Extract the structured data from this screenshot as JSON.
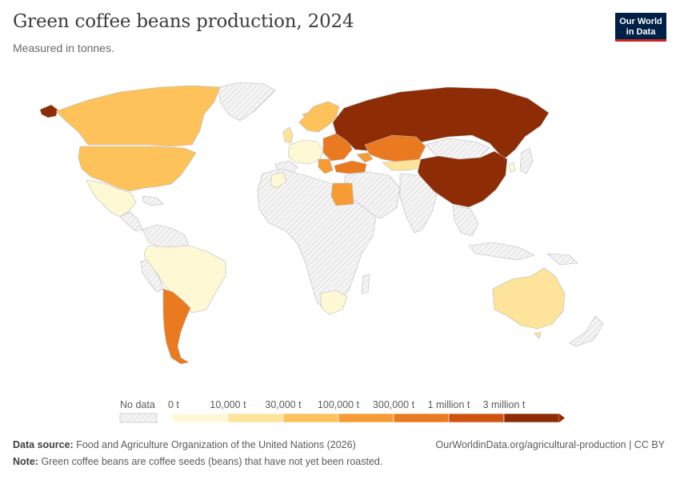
{
  "title": "Green coffee beans production, 2024",
  "subtitle": "Measured in tonnes.",
  "logo": {
    "line1": "Our World",
    "line2": "in Data"
  },
  "legend": {
    "no_data_label": "No data",
    "bins": [
      {
        "label": "0 t",
        "color": "#fef9d4"
      },
      {
        "label": "10,000 t",
        "color": "#fde49a"
      },
      {
        "label": "30,000 t",
        "color": "#fdc25a"
      },
      {
        "label": "100,000 t",
        "color": "#f79b35"
      },
      {
        "label": "300,000 t",
        "color": "#ea7a20"
      },
      {
        "label": "1 million t",
        "color": "#cf5411"
      },
      {
        "label": "3 million t",
        "color": "#8e2c06"
      }
    ]
  },
  "map_fills": {
    "no_data": "#f1f1f1",
    "border": "#c8c8c8"
  },
  "footer": {
    "source_label": "Data source:",
    "source_text": "Food and Agriculture Organization of the United Nations (2026)",
    "credit": "OurWorldinData.org/agricultural-production | CC BY",
    "note_label": "Note:",
    "note_text": "Green coffee beans are coffee seeds (beans) that have not yet been roasted."
  }
}
